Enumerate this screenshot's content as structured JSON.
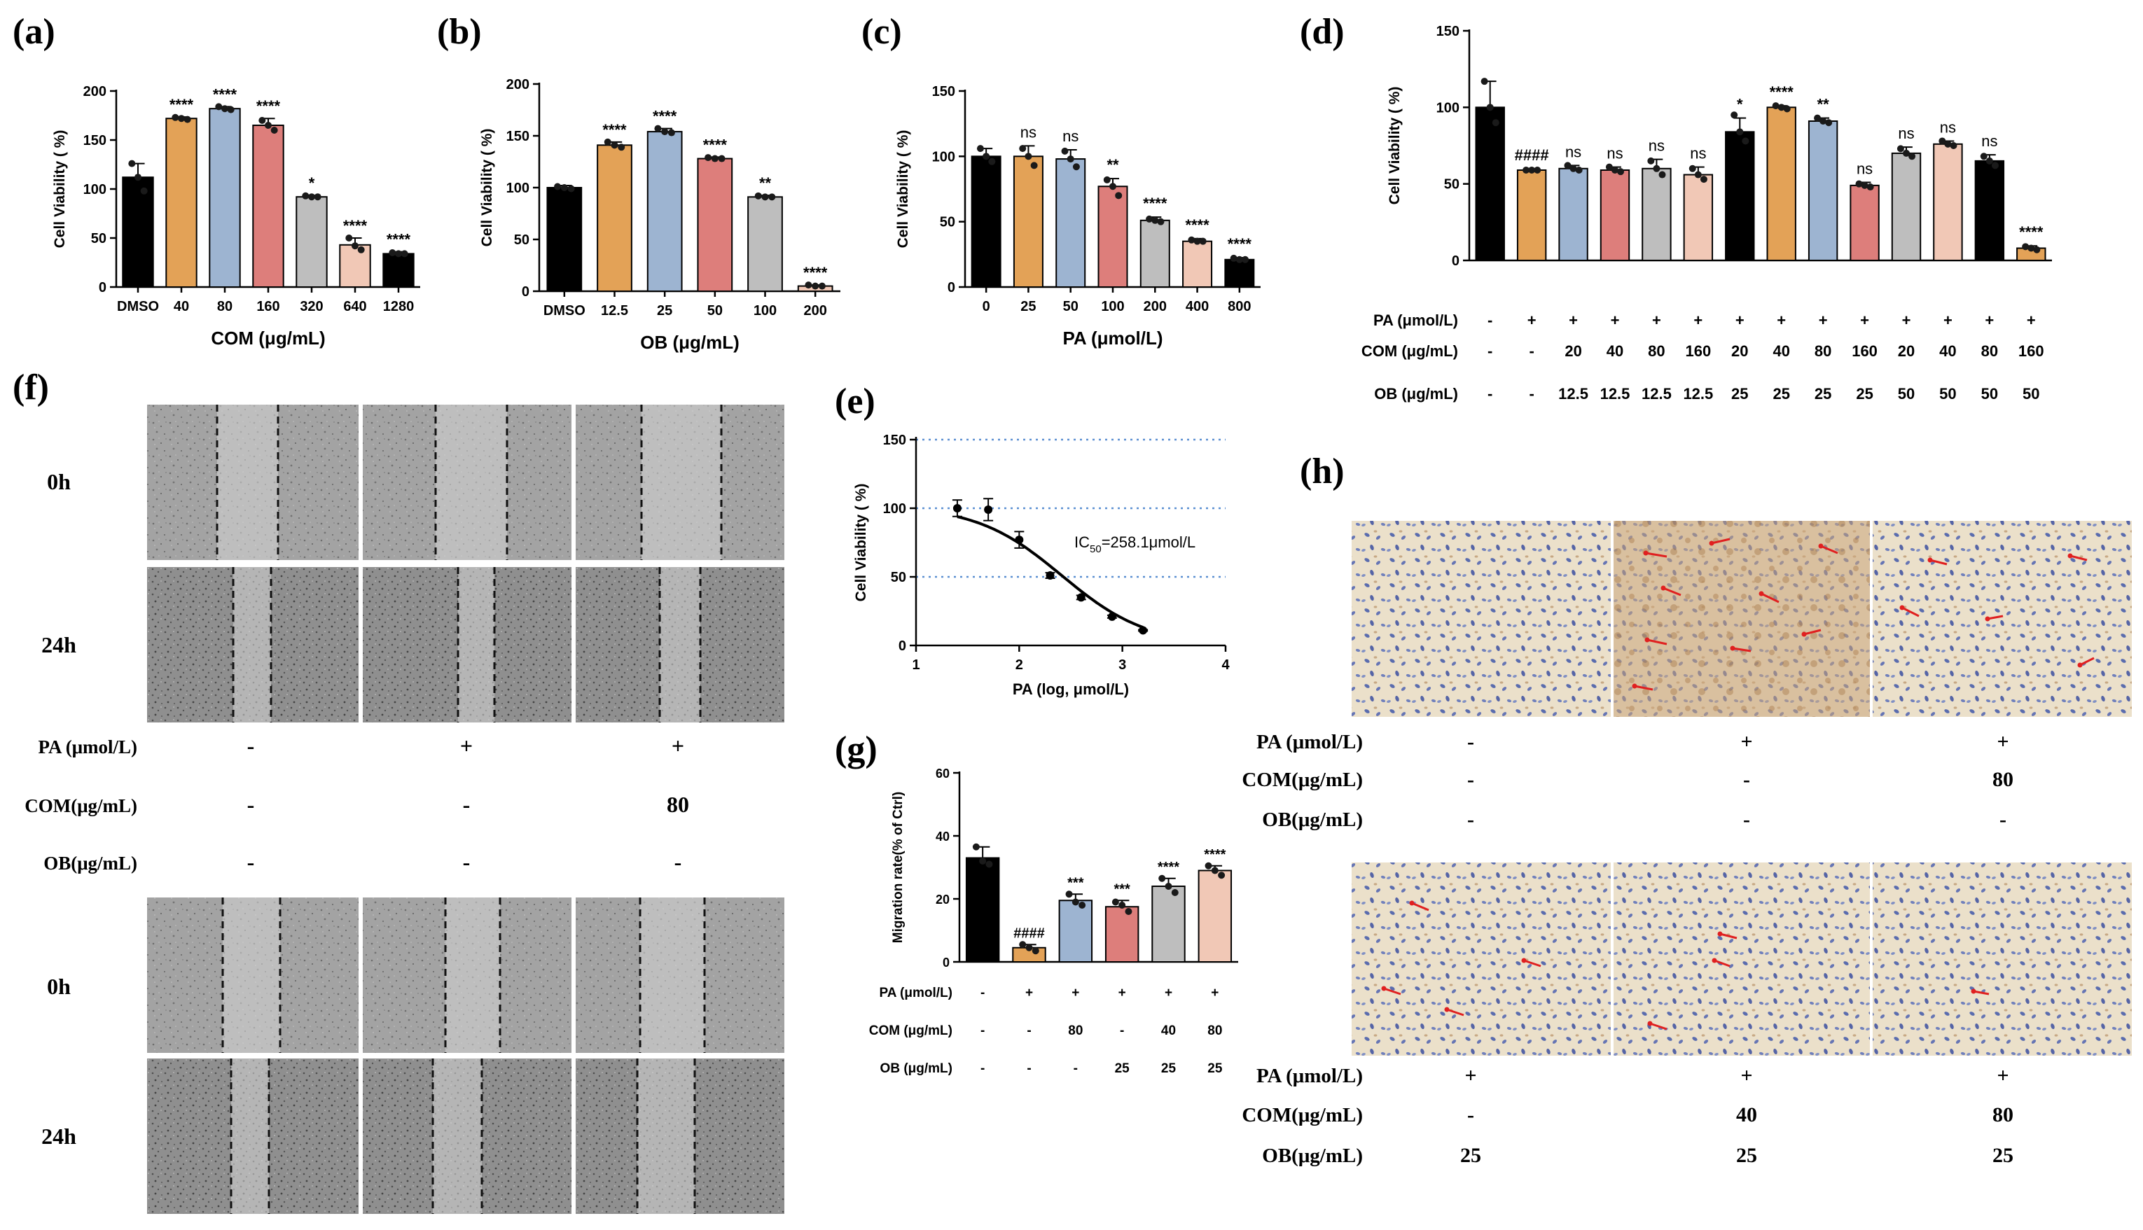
{
  "colors": {
    "black": "#000000",
    "orange": "#E3A257",
    "blue": "#9DB4D1",
    "red": "#DD7E7B",
    "gray": "#BEBEBE",
    "peach": "#F1C8B6",
    "dot": "#1a1a1a",
    "arrow": "#e02020",
    "micro_bg": "#9a9a9a",
    "ihc_bg": "#e9dcc6"
  },
  "panel_labels": [
    "(a)",
    "(b)",
    "(c)",
    "(d)",
    "(e)",
    "(f)",
    "(g)",
    "(h)"
  ],
  "chart_data": [
    {
      "id": "a",
      "type": "bar",
      "ylabel": "Cell Viability ( %)",
      "xlabel": "COM (μg/mL)",
      "ylim": [
        0,
        200
      ],
      "yticks": [
        0,
        50,
        100,
        150,
        200
      ],
      "categories": [
        "DMSO",
        "40",
        "80",
        "160",
        "320",
        "640",
        "1280"
      ],
      "values": [
        112,
        172,
        182,
        165,
        92,
        43,
        34
      ],
      "errors": [
        14,
        1.5,
        2,
        7,
        1.5,
        7,
        2
      ],
      "points": [
        [
          126,
          112,
          98
        ],
        [
          173,
          172,
          171
        ],
        [
          184,
          182,
          181
        ],
        [
          170,
          165,
          160
        ],
        [
          93,
          92,
          92
        ],
        [
          50,
          42,
          38
        ],
        [
          35,
          34,
          34
        ]
      ],
      "bar_colors": [
        "black",
        "orange",
        "blue",
        "red",
        "gray",
        "peach",
        "black"
      ],
      "annotations": [
        "",
        "****",
        "****",
        "****",
        "*",
        "****",
        "****"
      ]
    },
    {
      "id": "b",
      "type": "bar",
      "ylabel": "Cell Viability ( %)",
      "xlabel": "OB (μg/mL)",
      "ylim": [
        0,
        200
      ],
      "yticks": [
        0,
        50,
        100,
        150,
        200
      ],
      "categories": [
        "DMSO",
        "12.5",
        "25",
        "50",
        "100",
        "200"
      ],
      "values": [
        100,
        141,
        154,
        128,
        91,
        5
      ],
      "errors": [
        2,
        3,
        3,
        1.5,
        1.5,
        1
      ],
      "points": [
        [
          101,
          100,
          99
        ],
        [
          144,
          141,
          139
        ],
        [
          157,
          154,
          153
        ],
        [
          129,
          128,
          128
        ],
        [
          92,
          91,
          91
        ],
        [
          6,
          5,
          5
        ]
      ],
      "bar_colors": [
        "black",
        "orange",
        "blue",
        "red",
        "gray",
        "peach"
      ],
      "annotations": [
        "",
        "****",
        "****",
        "****",
        "**",
        "****"
      ]
    },
    {
      "id": "c",
      "type": "bar",
      "ylabel": "Cell Viability ( %)",
      "xlabel": "PA (μmol/L)",
      "ylim": [
        0,
        150
      ],
      "yticks": [
        0,
        50,
        100,
        150
      ],
      "categories": [
        "0",
        "25",
        "50",
        "100",
        "200",
        "400",
        "800"
      ],
      "values": [
        100,
        100,
        98,
        77,
        51,
        35,
        21
      ],
      "errors": [
        6,
        8,
        7,
        6,
        2.5,
        2,
        1.5
      ],
      "points": [
        [
          106,
          100,
          96
        ],
        [
          106,
          100,
          93
        ],
        [
          104,
          98,
          92
        ],
        [
          82,
          77,
          70
        ],
        [
          52,
          51,
          50
        ],
        [
          36,
          35,
          35
        ],
        [
          22,
          21,
          21
        ]
      ],
      "bar_colors": [
        "black",
        "orange",
        "blue",
        "red",
        "gray",
        "peach",
        "black"
      ],
      "annotations": [
        "",
        "ns",
        "ns",
        "**",
        "****",
        "****",
        "****"
      ]
    },
    {
      "id": "d",
      "type": "bar",
      "ylabel": "Cell Viability ( %)",
      "ylim": [
        0,
        150
      ],
      "yticks": [
        0,
        50,
        100,
        150
      ],
      "categories": [
        "1",
        "2",
        "3",
        "4",
        "5",
        "6",
        "7",
        "8",
        "9",
        "10",
        "11",
        "12",
        "13",
        "14"
      ],
      "values": [
        100,
        59,
        60,
        59,
        60,
        56,
        84,
        100,
        91,
        49,
        70,
        76,
        65,
        8
      ],
      "errors": [
        17,
        1,
        2,
        2,
        6,
        5,
        9,
        1,
        2,
        2,
        4,
        2,
        4,
        1.5
      ],
      "points": [
        [
          117,
          100,
          90
        ],
        [
          59,
          59,
          59
        ],
        [
          62,
          60,
          59
        ],
        [
          61,
          59,
          58
        ],
        [
          65,
          60,
          56
        ],
        [
          60,
          56,
          53
        ],
        [
          95,
          84,
          78
        ],
        [
          101,
          100,
          99
        ],
        [
          93,
          91,
          90
        ],
        [
          50,
          49,
          48
        ],
        [
          73,
          70,
          68
        ],
        [
          78,
          76,
          75
        ],
        [
          68,
          65,
          62
        ],
        [
          9,
          8,
          7
        ]
      ],
      "bar_colors": [
        "black",
        "orange",
        "blue",
        "red",
        "gray",
        "peach",
        "black",
        "orange",
        "blue",
        "red",
        "gray",
        "peach",
        "black",
        "orange"
      ],
      "annotations": [
        "",
        "####",
        "ns",
        "ns",
        "ns",
        "ns",
        "*",
        "****",
        "**",
        "ns",
        "ns",
        "ns",
        "ns",
        "****"
      ],
      "conditions": [
        {
          "label": "PA (μmol/L)",
          "values": [
            "-",
            "+",
            "+",
            "+",
            "+",
            "+",
            "+",
            "+",
            "+",
            "+",
            "+",
            "+",
            "+",
            "+"
          ]
        },
        {
          "label": "COM (μg/mL)",
          "values": [
            "-",
            "-",
            "20",
            "40",
            "80",
            "160",
            "20",
            "40",
            "80",
            "160",
            "20",
            "40",
            "80",
            "160"
          ]
        },
        {
          "label": "OB (μg/mL)",
          "values": [
            "-",
            "-",
            "12.5",
            "12.5",
            "12.5",
            "12.5",
            "25",
            "25",
            "25",
            "25",
            "50",
            "50",
            "50",
            "50"
          ]
        }
      ]
    },
    {
      "id": "e",
      "type": "line",
      "ylabel": "Cell Viability ( %)",
      "xlabel": "PA (log, μmol/L)",
      "xlim": [
        1,
        4
      ],
      "ylim": [
        0,
        150
      ],
      "xticks": [
        1,
        2,
        3,
        4
      ],
      "yticks": [
        0,
        50,
        100,
        150
      ],
      "points": [
        [
          1.4,
          100,
          6
        ],
        [
          1.7,
          99,
          8
        ],
        [
          2.0,
          77,
          6
        ],
        [
          2.3,
          51,
          2
        ],
        [
          2.6,
          35,
          1.5
        ],
        [
          2.9,
          21,
          1
        ],
        [
          3.2,
          11,
          0.5
        ]
      ],
      "curve": {
        "top": 102,
        "bottom": 0,
        "log_ic50": 2.412,
        "hill": 1.05,
        "x_from": 1.4,
        "x_to": 3.2
      },
      "ic50_prefix": "IC",
      "ic50_sub": "50",
      "ic50_value": "=258.1μmol/L"
    },
    {
      "id": "g",
      "type": "bar",
      "ylabel": "Migration rate(% of Ctrl)",
      "ylim": [
        0,
        60
      ],
      "yticks": [
        0,
        20,
        40,
        60
      ],
      "categories": [
        "1",
        "2",
        "3",
        "4",
        "5",
        "6"
      ],
      "values": [
        33,
        4.5,
        19.5,
        17.5,
        24,
        29
      ],
      "errors": [
        3.5,
        1,
        2,
        2,
        2.5,
        1.5
      ],
      "points": [
        [
          36.5,
          32,
          31
        ],
        [
          5.5,
          4.5,
          3.5
        ],
        [
          21.5,
          19,
          18
        ],
        [
          19,
          18,
          16
        ],
        [
          26.5,
          24,
          22
        ],
        [
          30.5,
          29,
          27.5
        ]
      ],
      "bar_colors": [
        "black",
        "orange",
        "blue",
        "red",
        "gray",
        "peach"
      ],
      "annotations": [
        "",
        "####",
        "***",
        "***",
        "****",
        "****"
      ],
      "conditions": [
        {
          "label": "PA (μmol/L)",
          "values": [
            "-",
            "+",
            "+",
            "+",
            "+",
            "+"
          ]
        },
        {
          "label": "COM (μg/mL)",
          "values": [
            "-",
            "-",
            "80",
            "-",
            "40",
            "80"
          ]
        },
        {
          "label": "OB (μg/mL)",
          "values": [
            "-",
            "-",
            "-",
            "25",
            "25",
            "25"
          ]
        }
      ]
    }
  ],
  "panel_f": {
    "time_labels": [
      "0h",
      "24h",
      "0h",
      "24h"
    ],
    "conditions_top": [
      {
        "label": "PA (μmol/L)",
        "values": [
          "-",
          "+",
          "+"
        ]
      },
      {
        "label": "COM(μg/mL)",
        "values": [
          "-",
          "-",
          "80"
        ]
      },
      {
        "label": "OB(μg/mL)",
        "values": [
          "-",
          "-",
          "-"
        ]
      }
    ]
  },
  "panel_h": {
    "conditions_top": [
      {
        "label": "PA (μmol/L)",
        "values": [
          "-",
          "+",
          "+"
        ]
      },
      {
        "label": "COM(μg/mL)",
        "values": [
          "-",
          "-",
          "80"
        ]
      },
      {
        "label": "OB(μg/mL)",
        "values": [
          "-",
          "-",
          "-"
        ]
      }
    ],
    "conditions_bottom": [
      {
        "label": "PA (μmol/L)",
        "values": [
          "+",
          "+",
          "+"
        ]
      },
      {
        "label": "COM(μg/mL)",
        "values": [
          "-",
          "40",
          "80"
        ]
      },
      {
        "label": "OB(μg/mL)",
        "values": [
          "25",
          "25",
          "25"
        ]
      }
    ]
  }
}
